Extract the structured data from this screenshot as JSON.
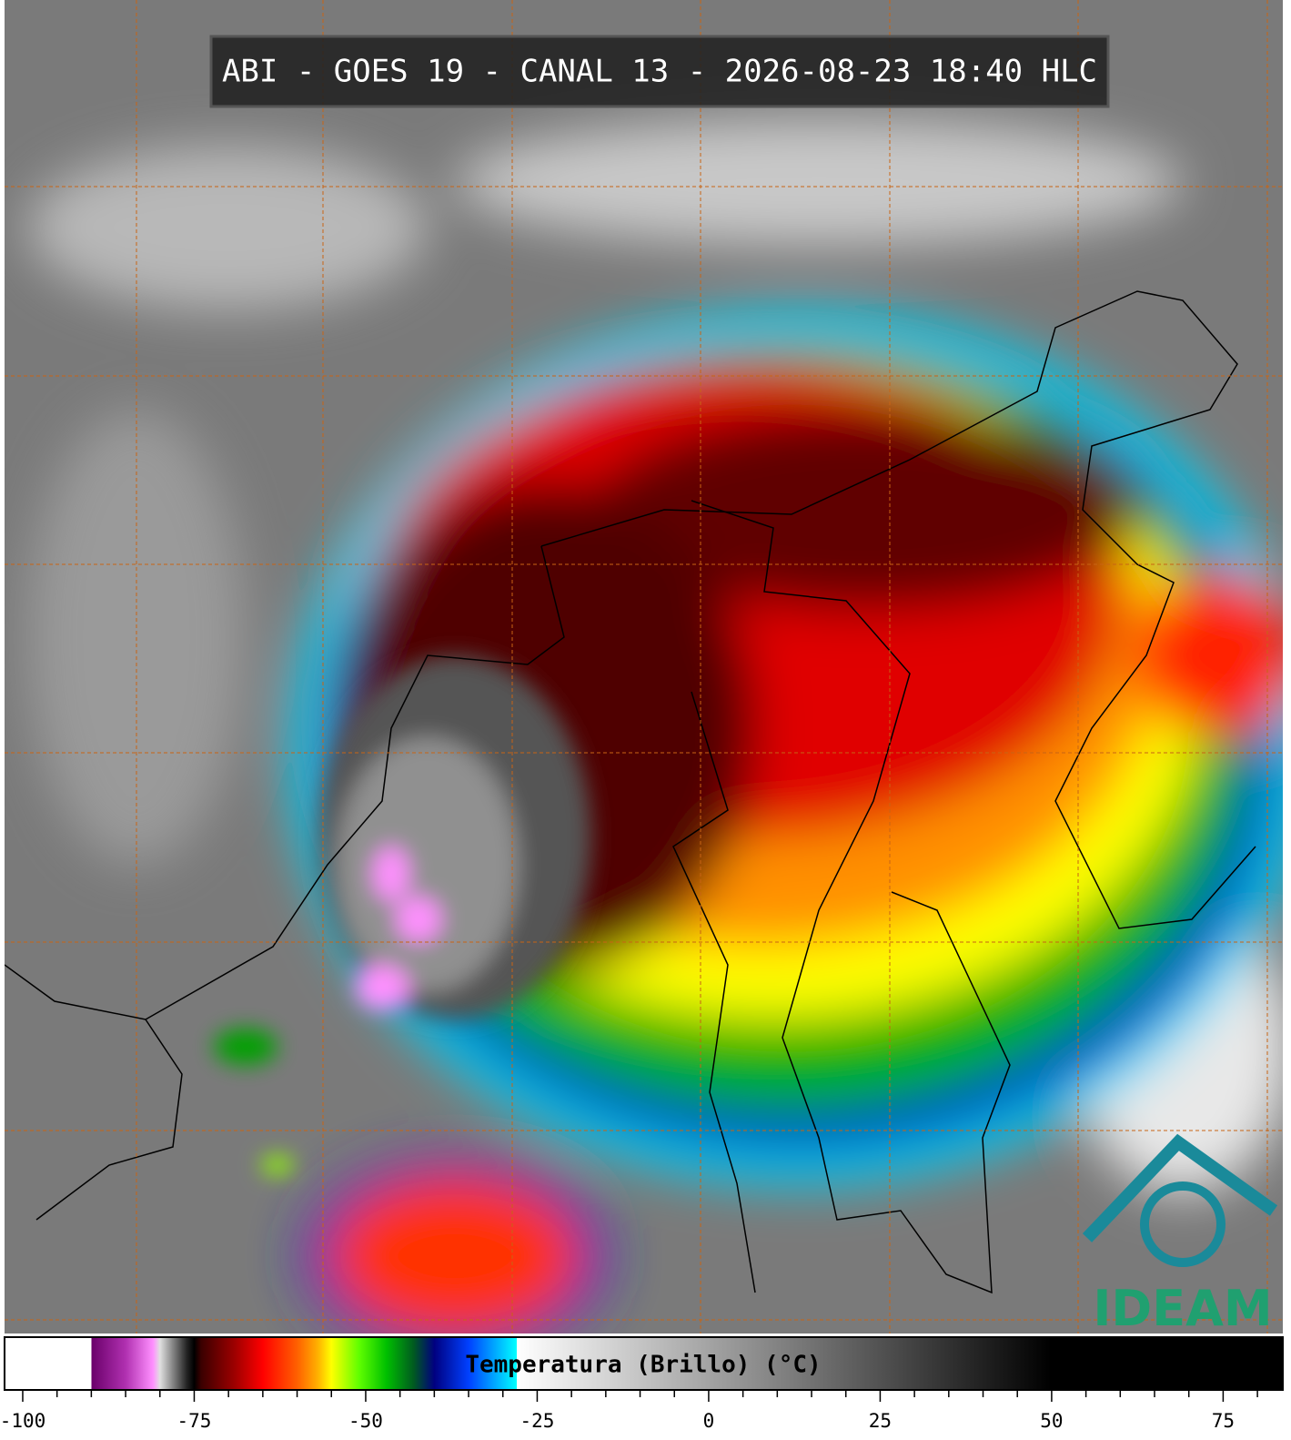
{
  "header": {
    "title": "ABI - GOES 19 - CANAL 13 - 2026-08-23 18:40 HLC",
    "logo": "IDEAM"
  },
  "colorbar": {
    "label": "Temperatura (Brillo) (°C)",
    "lim": [
      -102.65,
      83.7
    ],
    "ticks": [
      -100,
      -75,
      -50,
      -25,
      0,
      25,
      50,
      75
    ],
    "minor_ticks": [
      -95,
      -90,
      -85,
      -80,
      -70,
      -65,
      -60,
      -55,
      -45,
      -40,
      -35,
      -30,
      -20,
      -15,
      -10,
      -5,
      5,
      10,
      15,
      20,
      30,
      35,
      40,
      45,
      55,
      60,
      65,
      70,
      80
    ],
    "colormap": [
      {
        "value": -102.65,
        "color": "#ffffff"
      },
      {
        "value": -90,
        "color": "#ffffff"
      },
      {
        "value": -90,
        "color": "#6a006a"
      },
      {
        "value": -85,
        "color": "#b030b0"
      },
      {
        "value": -81,
        "color": "#ff90ff"
      },
      {
        "value": -80,
        "color": "#e0e0e0"
      },
      {
        "value": -76,
        "color": "#202020"
      },
      {
        "value": -75,
        "color": "#000000"
      },
      {
        "value": -74,
        "color": "#3a0000"
      },
      {
        "value": -69,
        "color": "#a00000"
      },
      {
        "value": -65,
        "color": "#ff0000"
      },
      {
        "value": -60,
        "color": "#ff6000"
      },
      {
        "value": -57,
        "color": "#ffb000"
      },
      {
        "value": -55,
        "color": "#ffff00"
      },
      {
        "value": -51,
        "color": "#60ff00"
      },
      {
        "value": -47,
        "color": "#00c000"
      },
      {
        "value": -43,
        "color": "#005a20"
      },
      {
        "value": -40,
        "color": "#000080"
      },
      {
        "value": -35,
        "color": "#0040ff"
      },
      {
        "value": -28,
        "color": "#00ffff"
      },
      {
        "value": -28,
        "color": "#ffffff"
      },
      {
        "value": 50,
        "color": "#000000"
      },
      {
        "value": 83.7,
        "color": "#000000"
      }
    ]
  }
}
